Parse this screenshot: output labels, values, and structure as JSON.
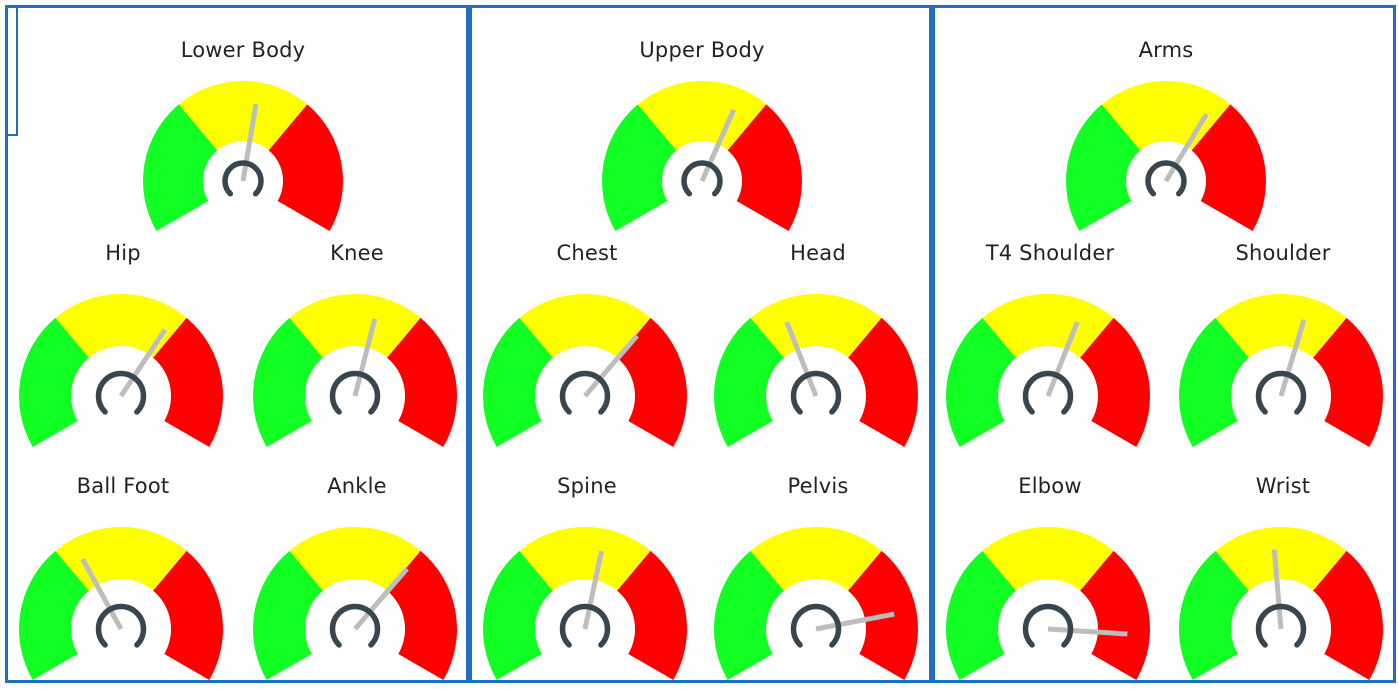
{
  "colors": {
    "border": "#1f6fc4",
    "green": "#11ff22",
    "yellow": "#ffff00",
    "red": "#ff0000",
    "needle": "#bdbdbd",
    "hub": "#38474f"
  },
  "panels": [
    {
      "title": "Lower Body",
      "gauges": [
        {
          "label": "Hip",
          "value": 0.64
        },
        {
          "label": "Knee",
          "value": 0.56
        },
        {
          "label": "Ball Foot",
          "value": 0.38
        },
        {
          "label": "Ankle",
          "value": 0.67
        }
      ],
      "main_value": 0.54
    },
    {
      "title": "Upper Body",
      "gauges": [
        {
          "label": "Chest",
          "value": 0.67
        },
        {
          "label": "Head",
          "value": 0.41
        },
        {
          "label": "Spine",
          "value": 0.55
        },
        {
          "label": "Pelvis",
          "value": 0.83
        }
      ],
      "main_value": 0.6
    },
    {
      "title": "Arms",
      "gauges": [
        {
          "label": "T4 Shoulder",
          "value": 0.59
        },
        {
          "label": "Shoulder",
          "value": 0.57
        },
        {
          "label": "Elbow",
          "value": 0.89
        },
        {
          "label": "Wrist",
          "value": 0.48
        }
      ],
      "main_value": 0.63
    }
  ]
}
